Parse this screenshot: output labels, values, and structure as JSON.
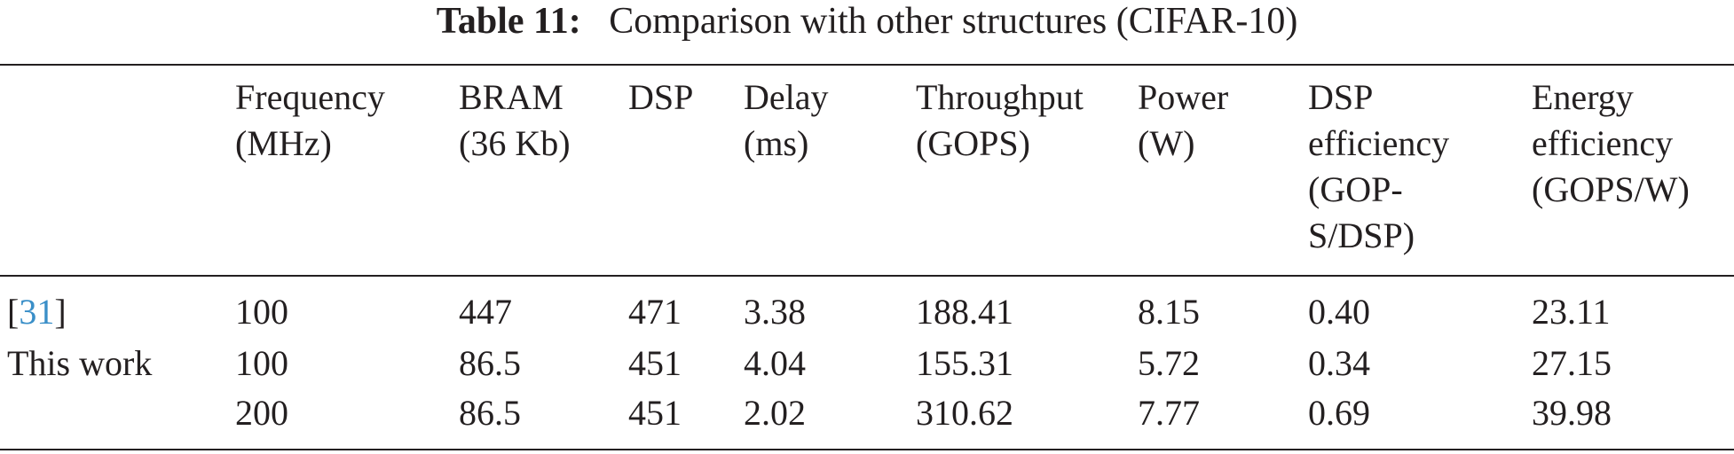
{
  "caption": {
    "label": "Table 11:",
    "text": "Comparison with other structures (CIFAR-10)"
  },
  "header": [
    {
      "key": "frequency",
      "lines": [
        "Frequency",
        "(MHz)"
      ]
    },
    {
      "key": "bram",
      "lines": [
        "BRAM",
        "(36 Kb)"
      ]
    },
    {
      "key": "dsp",
      "lines": [
        "DSP"
      ]
    },
    {
      "key": "delay",
      "lines": [
        "Delay",
        "(ms)"
      ]
    },
    {
      "key": "throughput",
      "lines": [
        "Throughput",
        "(GOPS)"
      ]
    },
    {
      "key": "power",
      "lines": [
        "Power",
        "(W)"
      ]
    },
    {
      "key": "dsp-efficiency",
      "lines": [
        "DSP",
        "efficiency",
        "(GOP-",
        "S/DSP)"
      ]
    },
    {
      "key": "energy-efficiency",
      "lines": [
        "Energy",
        "efficiency",
        "(GOPS/W)"
      ]
    }
  ],
  "rows": [
    {
      "label_prefix": "[",
      "label_ref": "31",
      "label_suffix": "]",
      "values": [
        "100",
        "447",
        "471",
        "3.38",
        "188.41",
        "8.15",
        "0.40",
        "23.11"
      ]
    },
    {
      "label_prefix": "This work",
      "label_ref": "",
      "label_suffix": "",
      "values": [
        "100",
        "86.5",
        "451",
        "4.04",
        "155.31",
        "5.72",
        "0.34",
        "27.15"
      ]
    },
    {
      "label_prefix": "",
      "label_ref": "",
      "label_suffix": "",
      "values": [
        "200",
        "86.5",
        "451",
        "2.02",
        "310.62",
        "7.77",
        "0.69",
        "39.98"
      ]
    }
  ],
  "colors": {
    "text": "#231f20",
    "link": "#3a8fc8"
  }
}
